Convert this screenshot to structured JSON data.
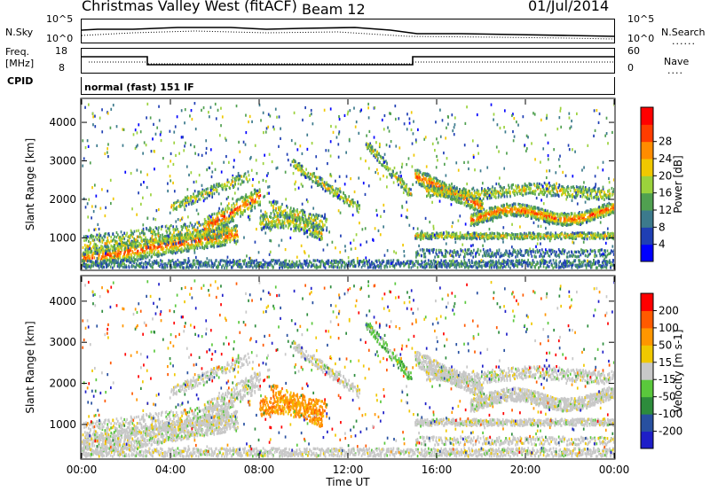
{
  "header": {
    "title": "Christmas Valley West (fitACF)",
    "beam": "Beam 12",
    "date": "01/Jul/2014"
  },
  "status_panels": {
    "nsky_label": "N.Sky",
    "nsearch_label": "N.Search",
    "nsky_ticks": [
      "10^5",
      "10^0"
    ],
    "nsky_right_ticks": [
      "10^5",
      "10^0"
    ],
    "freq_label": "Freq.",
    "freq_unit": "[MHz]",
    "freq_ticks": [
      "18",
      "8"
    ],
    "nave_label": "Nave",
    "nave_ticks": [
      "60",
      "0"
    ],
    "cpid_label": "CPID",
    "cpid_text": "normal (fast) 151 IF"
  },
  "chart_data": [
    {
      "type": "heatmap",
      "name": "power",
      "ylabel": "Slant Range [km]",
      "y_ticks": [
        1000,
        2000,
        3000,
        4000
      ],
      "ylim": [
        180,
        4600
      ],
      "x_ticks": [
        "00:00",
        "04:00",
        "08:00",
        "12:00",
        "16:00",
        "20:00",
        "00:00"
      ],
      "xlim_hours": [
        0,
        24
      ],
      "colorbar": {
        "label": "Power [dB]",
        "ticks": [
          "4",
          "8",
          "12",
          "16",
          "20",
          "24",
          "28"
        ],
        "colors": [
          "#0000ff",
          "#1f3fb4",
          "#3c7a8c",
          "#50a050",
          "#9bd23c",
          "#f0c800",
          "#ff8c00",
          "#ff3c00",
          "#ff0000"
        ]
      }
    },
    {
      "type": "heatmap",
      "name": "velocity",
      "ylabel": "Slant Range [km]",
      "y_ticks": [
        1000,
        2000,
        3000,
        4000
      ],
      "ylim": [
        180,
        4600
      ],
      "x_ticks": [
        "00:00",
        "04:00",
        "08:00",
        "12:00",
        "16:00",
        "20:00",
        "00:00"
      ],
      "xlim_hours": [
        0,
        24
      ],
      "xlabel": "Time UT",
      "colorbar": {
        "label": "Velocity [m s-1]",
        "ticks": [
          "200",
          "100",
          "50",
          "15",
          "-15",
          "-50",
          "-100",
          "-200"
        ],
        "colors": [
          "#1e1ec8",
          "#2850a0",
          "#2d8c3c",
          "#5ac83c",
          "#c8c8c8",
          "#f0c800",
          "#ff9600",
          "#ff5a00",
          "#ff0000"
        ]
      }
    }
  ]
}
